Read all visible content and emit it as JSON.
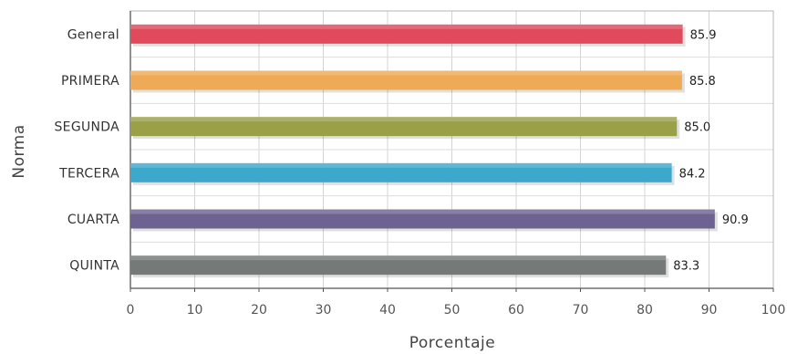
{
  "chart_data": {
    "type": "bar",
    "orientation": "horizontal",
    "categories": [
      "General",
      "PRIMERA",
      "SEGUNDA",
      "TERCERA",
      "CUARTA",
      "QUINTA"
    ],
    "values": [
      85.9,
      85.8,
      85.0,
      84.2,
      90.9,
      83.3
    ],
    "value_labels": [
      "85.9",
      "85.8",
      "85.0",
      "84.2",
      "90.9",
      "83.3"
    ],
    "colors": [
      "#e04a5c",
      "#eeaa55",
      "#9aa048",
      "#3ba8cc",
      "#6e6390",
      "#757a79"
    ],
    "xlabel": "Porcentaje",
    "ylabel": "Norma",
    "xlim": [
      0,
      100
    ],
    "xticks": [
      "0",
      "10",
      "20",
      "30",
      "40",
      "50",
      "60",
      "70",
      "80",
      "90",
      "100"
    ],
    "grid": true,
    "legend": "none"
  }
}
